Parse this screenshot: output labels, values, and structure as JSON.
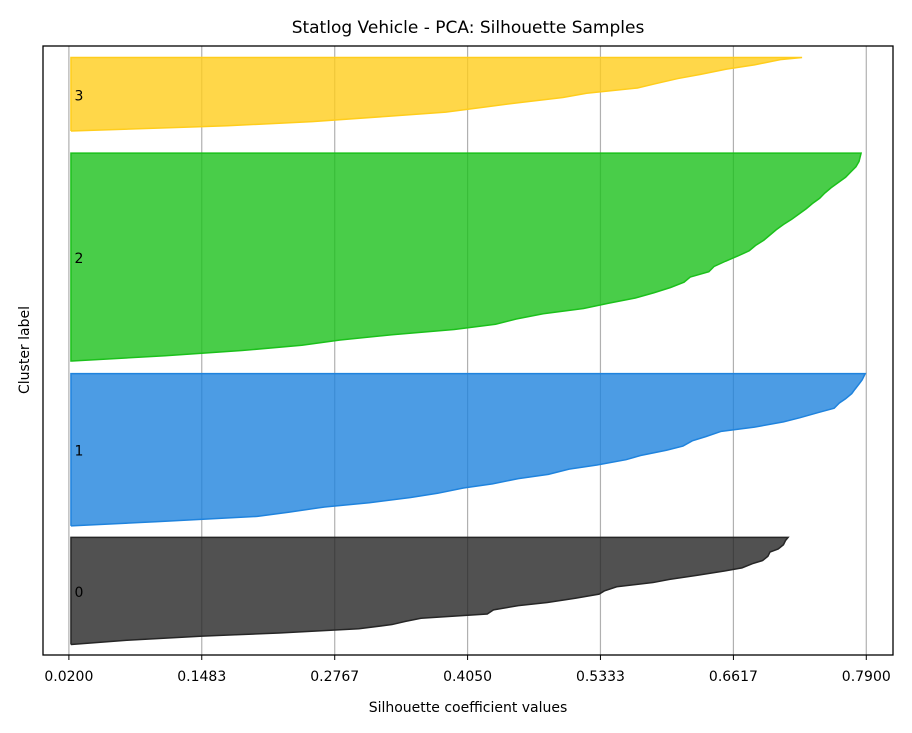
{
  "chart_data": {
    "type": "area",
    "title": "Statlog Vehicle - PCA: Silhouette Samples",
    "xlabel": "Silhouette coefficient values",
    "ylabel": "Cluster label",
    "xlim": [
      0.02,
      0.79
    ],
    "xticks": [
      "0.0200",
      "0.1483",
      "0.2767",
      "0.4050",
      "0.5333",
      "0.6617",
      "0.7900"
    ],
    "grid": "vertical",
    "clusters": [
      {
        "label": "0",
        "color": "#262626",
        "y_range": [
          0,
          102
        ],
        "profile": [
          [
            0,
            0.022
          ],
          [
            4,
            0.076
          ],
          [
            8,
            0.149
          ],
          [
            11,
            0.223
          ],
          [
            15,
            0.3
          ],
          [
            19,
            0.332
          ],
          [
            22,
            0.345
          ],
          [
            25,
            0.36
          ],
          [
            29,
            0.424
          ],
          [
            33,
            0.43
          ],
          [
            37,
            0.454
          ],
          [
            40,
            0.482
          ],
          [
            44,
            0.509
          ],
          [
            48,
            0.532
          ],
          [
            51,
            0.537
          ],
          [
            55,
            0.549
          ],
          [
            59,
            0.584
          ],
          [
            62,
            0.6
          ],
          [
            66,
            0.627
          ],
          [
            70,
            0.653
          ],
          [
            73,
            0.67
          ],
          [
            77,
            0.68
          ],
          [
            80,
            0.69
          ],
          [
            84,
            0.695
          ],
          [
            88,
            0.697
          ],
          [
            91,
            0.705
          ],
          [
            95,
            0.71
          ],
          [
            99,
            0.712
          ],
          [
            102,
            0.7145
          ]
        ]
      },
      {
        "label": "1",
        "color": "#1f83dd",
        "y_range": [
          113,
          258
        ],
        "profile": [
          [
            0,
            0.022
          ],
          [
            4,
            0.106
          ],
          [
            9,
            0.202
          ],
          [
            13,
            0.232
          ],
          [
            18,
            0.267
          ],
          [
            22,
            0.31
          ],
          [
            27,
            0.35
          ],
          [
            31,
            0.376
          ],
          [
            36,
            0.401
          ],
          [
            40,
            0.429
          ],
          [
            45,
            0.454
          ],
          [
            49,
            0.483
          ],
          [
            54,
            0.503
          ],
          [
            58,
            0.53
          ],
          [
            63,
            0.558
          ],
          [
            67,
            0.572
          ],
          [
            72,
            0.597
          ],
          [
            76,
            0.613
          ],
          [
            81,
            0.622
          ],
          [
            85,
            0.635
          ],
          [
            90,
            0.65
          ],
          [
            94,
            0.682
          ],
          [
            99,
            0.71
          ],
          [
            103,
            0.726
          ],
          [
            108,
            0.744
          ],
          [
            112,
            0.759
          ],
          [
            117,
            0.764
          ],
          [
            121,
            0.77
          ],
          [
            126,
            0.776
          ],
          [
            130,
            0.779
          ],
          [
            135,
            0.783
          ],
          [
            139,
            0.786
          ],
          [
            145,
            0.789
          ]
        ]
      },
      {
        "label": "2",
        "color": "#1bc01b",
        "y_range": [
          270,
          468
        ],
        "profile": [
          [
            0,
            0.023
          ],
          [
            5,
            0.113
          ],
          [
            10,
            0.187
          ],
          [
            15,
            0.245
          ],
          [
            20,
            0.282
          ],
          [
            25,
            0.332
          ],
          [
            30,
            0.392
          ],
          [
            35,
            0.432
          ],
          [
            40,
            0.452
          ],
          [
            45,
            0.478
          ],
          [
            50,
            0.517
          ],
          [
            55,
            0.541
          ],
          [
            60,
            0.567
          ],
          [
            65,
            0.585
          ],
          [
            70,
            0.601
          ],
          [
            75,
            0.614
          ],
          [
            80,
            0.62
          ],
          [
            85,
            0.638
          ],
          [
            90,
            0.643
          ],
          [
            95,
            0.654
          ],
          [
            100,
            0.666
          ],
          [
            105,
            0.677
          ],
          [
            110,
            0.683
          ],
          [
            115,
            0.691
          ],
          [
            120,
            0.697
          ],
          [
            125,
            0.703
          ],
          [
            130,
            0.71
          ],
          [
            135,
            0.718
          ],
          [
            140,
            0.725
          ],
          [
            145,
            0.732
          ],
          [
            150,
            0.738
          ],
          [
            155,
            0.745
          ],
          [
            160,
            0.75
          ],
          [
            165,
            0.756
          ],
          [
            170,
            0.763
          ],
          [
            175,
            0.77
          ],
          [
            180,
            0.775
          ],
          [
            185,
            0.78
          ],
          [
            190,
            0.783
          ],
          [
            198,
            0.785
          ]
        ]
      },
      {
        "label": "3",
        "color": "#ffcd1c",
        "y_range": [
          489,
          559
        ],
        "profile": [
          [
            0,
            0.022
          ],
          [
            5,
            0.173
          ],
          [
            9,
            0.255
          ],
          [
            14,
            0.327
          ],
          [
            18,
            0.384
          ],
          [
            23,
            0.423
          ],
          [
            27,
            0.454
          ],
          [
            32,
            0.497
          ],
          [
            36,
            0.52
          ],
          [
            41,
            0.569
          ],
          [
            45,
            0.586
          ],
          [
            50,
            0.608
          ],
          [
            54,
            0.63
          ],
          [
            59,
            0.655
          ],
          [
            63,
            0.682
          ],
          [
            68,
            0.707
          ],
          [
            70,
            0.728
          ]
        ]
      }
    ]
  }
}
